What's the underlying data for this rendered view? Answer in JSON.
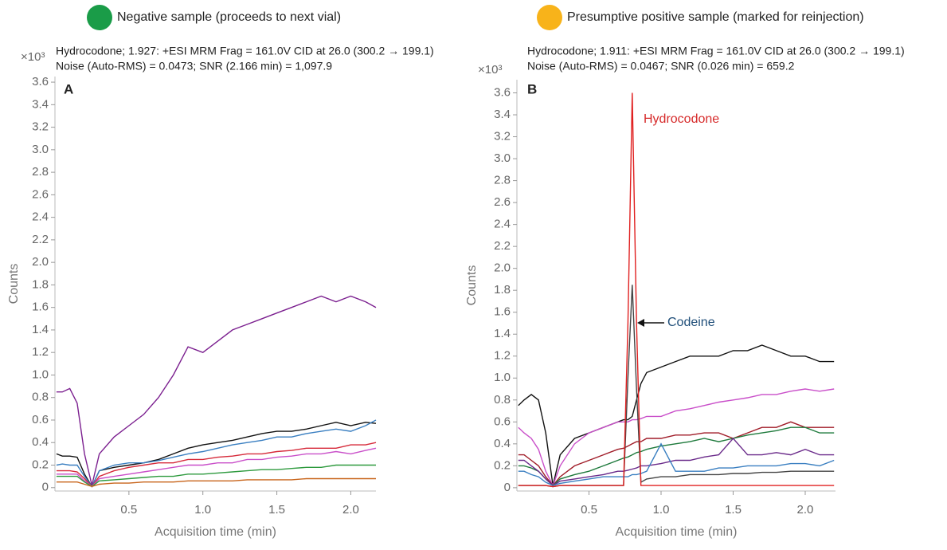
{
  "chart_data": [
    {
      "type": "line",
      "status": {
        "label": "Negative sample (proceeds to next vial)",
        "color": "#1a9c48"
      },
      "title": "A",
      "subtitle": [
        "Hydrocodone; 1.927: +ESI MRM Frag = 161.0V CID at 26.0 (300.2 → 199.1)",
        "Noise (Auto-RMS) = 0.0473; SNR (2.166 min) = 1,097.9"
      ],
      "y_multiplier": "×10³",
      "xlabel": "Acquisition time (min)",
      "ylabel": "Counts",
      "xlim": [
        0,
        2.17
      ],
      "ylim": [
        -0.03,
        3.65
      ],
      "xticks": [
        0.5,
        {
          "value": 1,
          "label": "1.0"
        },
        1.5,
        {
          "value": 2,
          "label": "2.0"
        }
      ],
      "yticks": [
        0,
        0.2,
        0.4,
        0.6,
        0.8,
        {
          "value": 1,
          "label": "1.0"
        },
        1.2,
        1.4,
        1.6,
        1.8,
        {
          "value": 2,
          "label": "2.0"
        },
        2.2,
        2.4,
        2.6,
        2.8,
        {
          "value": 3,
          "label": "3.0"
        },
        3.2,
        3.4,
        3.6
      ],
      "x": [
        0.01,
        0.05,
        0.1,
        0.15,
        0.2,
        0.25,
        0.3,
        0.4,
        0.5,
        0.6,
        0.7,
        0.8,
        0.9,
        1.0,
        1.1,
        1.2,
        1.3,
        1.4,
        1.5,
        1.6,
        1.7,
        1.8,
        1.9,
        2.0,
        2.1,
        2.17
      ],
      "series": [
        {
          "color": "#7b1f8f",
          "values": [
            0.85,
            0.85,
            0.88,
            0.75,
            0.3,
            0.02,
            0.3,
            0.45,
            0.55,
            0.65,
            0.8,
            1.0,
            1.25,
            1.2,
            1.3,
            1.4,
            1.45,
            1.5,
            1.55,
            1.6,
            1.65,
            1.7,
            1.65,
            1.7,
            1.65,
            1.6
          ]
        },
        {
          "color": "#111111",
          "values": [
            0.3,
            0.28,
            0.28,
            0.27,
            0.12,
            0.01,
            0.15,
            0.18,
            0.2,
            0.22,
            0.25,
            0.3,
            0.35,
            0.38,
            0.4,
            0.42,
            0.45,
            0.48,
            0.5,
            0.5,
            0.52,
            0.55,
            0.58,
            0.55,
            0.58,
            0.57
          ]
        },
        {
          "color": "#3a7fc1",
          "values": [
            0.2,
            0.21,
            0.2,
            0.2,
            0.1,
            0.01,
            0.15,
            0.2,
            0.22,
            0.22,
            0.24,
            0.27,
            0.3,
            0.32,
            0.35,
            0.38,
            0.4,
            0.42,
            0.45,
            0.45,
            0.48,
            0.5,
            0.52,
            0.5,
            0.55,
            0.6
          ]
        },
        {
          "color": "#d62a3a",
          "values": [
            0.15,
            0.15,
            0.15,
            0.14,
            0.08,
            0.01,
            0.1,
            0.15,
            0.18,
            0.2,
            0.22,
            0.22,
            0.25,
            0.25,
            0.27,
            0.28,
            0.3,
            0.3,
            0.32,
            0.33,
            0.35,
            0.35,
            0.35,
            0.38,
            0.38,
            0.4
          ]
        },
        {
          "color": "#c94fc9",
          "values": [
            0.12,
            0.12,
            0.12,
            0.12,
            0.06,
            0.01,
            0.08,
            0.1,
            0.12,
            0.14,
            0.16,
            0.18,
            0.2,
            0.2,
            0.22,
            0.22,
            0.25,
            0.25,
            0.27,
            0.28,
            0.3,
            0.3,
            0.32,
            0.3,
            0.33,
            0.35
          ]
        },
        {
          "color": "#2e9a3e",
          "values": [
            0.1,
            0.1,
            0.1,
            0.1,
            0.05,
            0.01,
            0.06,
            0.07,
            0.08,
            0.09,
            0.1,
            0.1,
            0.12,
            0.12,
            0.13,
            0.14,
            0.15,
            0.16,
            0.16,
            0.17,
            0.18,
            0.18,
            0.2,
            0.2,
            0.2,
            0.2
          ]
        },
        {
          "color": "#c8641a",
          "values": [
            0.05,
            0.05,
            0.05,
            0.05,
            0.03,
            0.01,
            0.03,
            0.04,
            0.04,
            0.05,
            0.05,
            0.05,
            0.06,
            0.06,
            0.06,
            0.06,
            0.07,
            0.07,
            0.07,
            0.07,
            0.08,
            0.08,
            0.08,
            0.08,
            0.08,
            0.08
          ]
        }
      ]
    },
    {
      "type": "line",
      "status": {
        "label": "Presumptive positive sample (marked for reinjection)",
        "color": "#f8b31a"
      },
      "title": "B",
      "subtitle": [
        "Hydrocodone; 1.911: +ESI MRM Frag = 161.0V CID at 26.0 (300.2 → 199.1)",
        "Noise (Auto-RMS) = 0.0467; SNR (0.026 min) = 659.2"
      ],
      "y_multiplier": "×10³",
      "xlabel": "Acquisition time (min)",
      "ylabel": "Counts",
      "xlim": [
        0,
        2.21
      ],
      "ylim": [
        -0.03,
        3.72
      ],
      "xticks": [
        0.5,
        {
          "value": 1,
          "label": "1.0"
        },
        1.5,
        {
          "value": 2,
          "label": "2.0"
        }
      ],
      "yticks": [
        0,
        0.2,
        0.4,
        0.6,
        0.8,
        {
          "value": 1,
          "label": "1.0"
        },
        1.2,
        1.4,
        1.6,
        1.8,
        {
          "value": 2,
          "label": "2.0"
        },
        2.2,
        2.4,
        2.6,
        2.8,
        {
          "value": 3,
          "label": "3.0"
        },
        3.2,
        3.4,
        3.6
      ],
      "annotations": [
        {
          "text": "Hydrocodone",
          "color": "#d62a2a"
        },
        {
          "text": "Codeine",
          "color": "#1f4e79"
        }
      ],
      "x": [
        0.01,
        0.05,
        0.1,
        0.15,
        0.2,
        0.25,
        0.3,
        0.4,
        0.5,
        0.6,
        0.7,
        0.74,
        0.77,
        0.8,
        0.83,
        0.86,
        0.9,
        1.0,
        1.1,
        1.2,
        1.3,
        1.4,
        1.5,
        1.6,
        1.7,
        1.8,
        1.9,
        2.0,
        2.1,
        2.2
      ],
      "series": [
        {
          "color": "#111111",
          "values": [
            0.75,
            0.8,
            0.85,
            0.8,
            0.5,
            0.02,
            0.3,
            0.45,
            0.5,
            0.55,
            0.6,
            0.62,
            0.62,
            0.65,
            0.8,
            0.95,
            1.05,
            1.1,
            1.15,
            1.2,
            1.2,
            1.2,
            1.25,
            1.25,
            1.3,
            1.25,
            1.2,
            1.2,
            1.15,
            1.15
          ]
        },
        {
          "color": "#c94fc9",
          "values": [
            0.55,
            0.5,
            0.45,
            0.35,
            0.15,
            0.02,
            0.2,
            0.4,
            0.5,
            0.55,
            0.6,
            0.6,
            0.6,
            0.62,
            0.62,
            0.63,
            0.65,
            0.65,
            0.7,
            0.72,
            0.75,
            0.78,
            0.8,
            0.82,
            0.85,
            0.85,
            0.88,
            0.9,
            0.88,
            0.9
          ]
        },
        {
          "color": "#a01c28",
          "values": [
            0.3,
            0.3,
            0.25,
            0.2,
            0.1,
            0.02,
            0.1,
            0.2,
            0.25,
            0.3,
            0.35,
            0.36,
            0.38,
            0.4,
            0.42,
            0.42,
            0.45,
            0.45,
            0.48,
            0.48,
            0.5,
            0.5,
            0.45,
            0.5,
            0.55,
            0.55,
            0.6,
            0.55,
            0.55,
            0.55
          ]
        },
        {
          "color": "#1e7a3c",
          "values": [
            0.2,
            0.2,
            0.18,
            0.15,
            0.08,
            0.02,
            0.08,
            0.12,
            0.15,
            0.2,
            0.25,
            0.27,
            0.28,
            0.3,
            0.32,
            0.33,
            0.35,
            0.38,
            0.4,
            0.42,
            0.45,
            0.42,
            0.45,
            0.48,
            0.5,
            0.52,
            0.55,
            0.55,
            0.5,
            0.5
          ]
        },
        {
          "color": "#6a2a8a",
          "values": [
            0.25,
            0.25,
            0.2,
            0.15,
            0.08,
            0.02,
            0.06,
            0.08,
            0.1,
            0.12,
            0.15,
            0.15,
            0.16,
            0.17,
            0.18,
            0.2,
            0.2,
            0.22,
            0.25,
            0.25,
            0.28,
            0.3,
            0.45,
            0.3,
            0.3,
            0.32,
            0.3,
            0.35,
            0.3,
            0.3
          ]
        },
        {
          "color": "#3a7fc1",
          "values": [
            0.15,
            0.15,
            0.12,
            0.1,
            0.05,
            0.02,
            0.04,
            0.06,
            0.08,
            0.1,
            0.1,
            0.1,
            0.1,
            0.12,
            0.12,
            0.13,
            0.15,
            0.4,
            0.15,
            0.15,
            0.15,
            0.18,
            0.18,
            0.2,
            0.2,
            0.2,
            0.22,
            0.22,
            0.2,
            0.25
          ]
        },
        {
          "color": "#444444",
          "values": [
            0.02,
            0.02,
            0.02,
            0.02,
            0.02,
            0.01,
            0.02,
            0.02,
            0.02,
            0.02,
            0.02,
            0.02,
            1.0,
            1.85,
            0.9,
            0.05,
            0.08,
            0.1,
            0.1,
            0.12,
            0.12,
            0.12,
            0.13,
            0.13,
            0.14,
            0.14,
            0.15,
            0.15,
            0.15,
            0.15
          ]
        },
        {
          "color": "#e02020",
          "values": [
            0.02,
            0.02,
            0.02,
            0.02,
            0.02,
            0.01,
            0.02,
            0.02,
            0.02,
            0.02,
            0.02,
            0.02,
            1.5,
            3.6,
            1.5,
            0.02,
            0.02,
            0.02,
            0.02,
            0.02,
            0.02,
            0.02,
            0.02,
            0.02,
            0.02,
            0.02,
            0.02,
            0.02,
            0.02,
            0.02
          ]
        }
      ]
    }
  ]
}
